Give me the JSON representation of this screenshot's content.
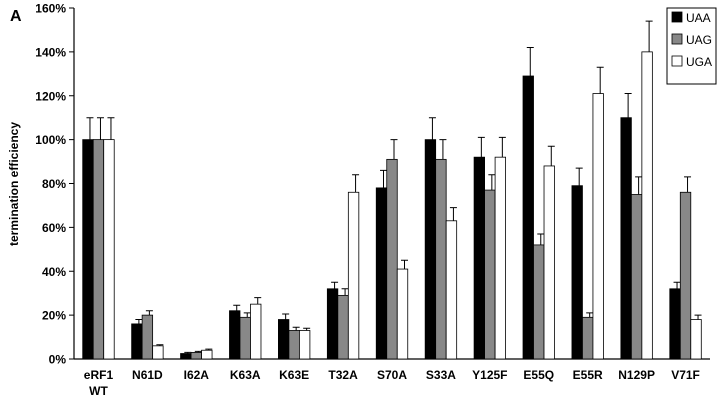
{
  "panel_label": "A",
  "chart_data": {
    "type": "bar",
    "ylabel": "termination efficiency",
    "ylim": [
      0,
      160
    ],
    "yticks": [
      0,
      20,
      40,
      60,
      80,
      100,
      120,
      140,
      160
    ],
    "ytick_labels": [
      "0%",
      "20%",
      "40%",
      "60%",
      "80%",
      "100%",
      "120%",
      "140%",
      "160%"
    ],
    "categories": [
      [
        "eRF1",
        "WT"
      ],
      [
        "N61D"
      ],
      [
        "I62A"
      ],
      [
        "K63A"
      ],
      [
        "K63E"
      ],
      [
        "T32A"
      ],
      [
        "S70A"
      ],
      [
        "S33A"
      ],
      [
        "Y125F"
      ],
      [
        "E55Q"
      ],
      [
        "E55R"
      ],
      [
        "N129P"
      ],
      [
        "V71F"
      ]
    ],
    "legend_position": "top-right",
    "series": [
      {
        "name": "UAA",
        "color": "#000000",
        "values": [
          100,
          16,
          2.5,
          22,
          18,
          32,
          78,
          100,
          92,
          129,
          79,
          110,
          32
        ],
        "errors": [
          10,
          2,
          0.5,
          2.5,
          2.5,
          3,
          8,
          10,
          9,
          13,
          8,
          11,
          3
        ]
      },
      {
        "name": "UAG",
        "color": "#888888",
        "values": [
          100,
          20,
          3,
          19,
          13,
          29,
          91,
          91,
          77,
          52,
          19,
          75,
          76
        ],
        "errors": [
          10,
          2,
          0.5,
          2,
          1.5,
          3,
          9,
          9,
          7,
          5,
          2,
          8,
          7
        ]
      },
      {
        "name": "UGA",
        "color": "#ffffff",
        "values": [
          100,
          6,
          4,
          25,
          13,
          76,
          41,
          63,
          92,
          88,
          121,
          140,
          18
        ],
        "errors": [
          10,
          0.5,
          0.5,
          3,
          1,
          8,
          4,
          6,
          9,
          9,
          12,
          14,
          2
        ]
      }
    ]
  }
}
